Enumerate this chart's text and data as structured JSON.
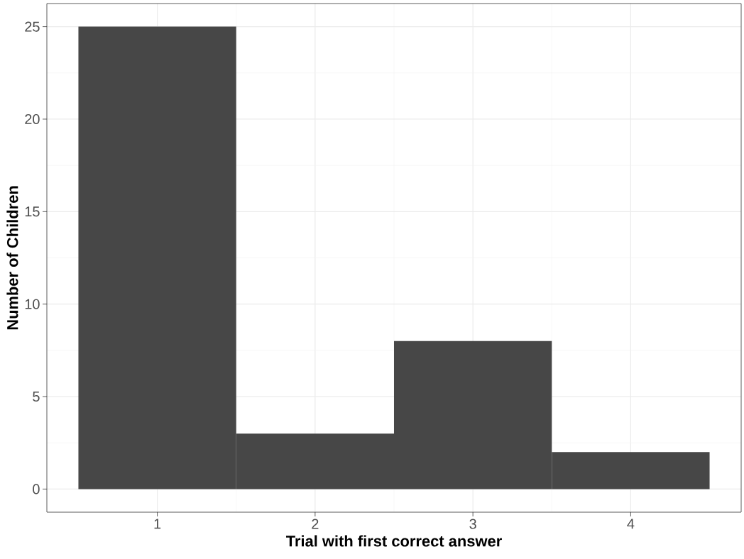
{
  "chart_data": {
    "type": "histogram",
    "xlabel": "Trial with first correct answer",
    "ylabel": "Number of Children",
    "bins": [
      0.5,
      1.5,
      2.5,
      3.5,
      4.5
    ],
    "values": [
      25,
      3,
      8,
      2
    ],
    "color": "#474747",
    "xlim": [
      0.3,
      4.7
    ],
    "ylim": [
      -1.25,
      26.25
    ],
    "xticks": [
      1,
      2,
      3,
      4
    ],
    "yticks": [
      0,
      5,
      10,
      15,
      20,
      25
    ],
    "grid": true
  }
}
